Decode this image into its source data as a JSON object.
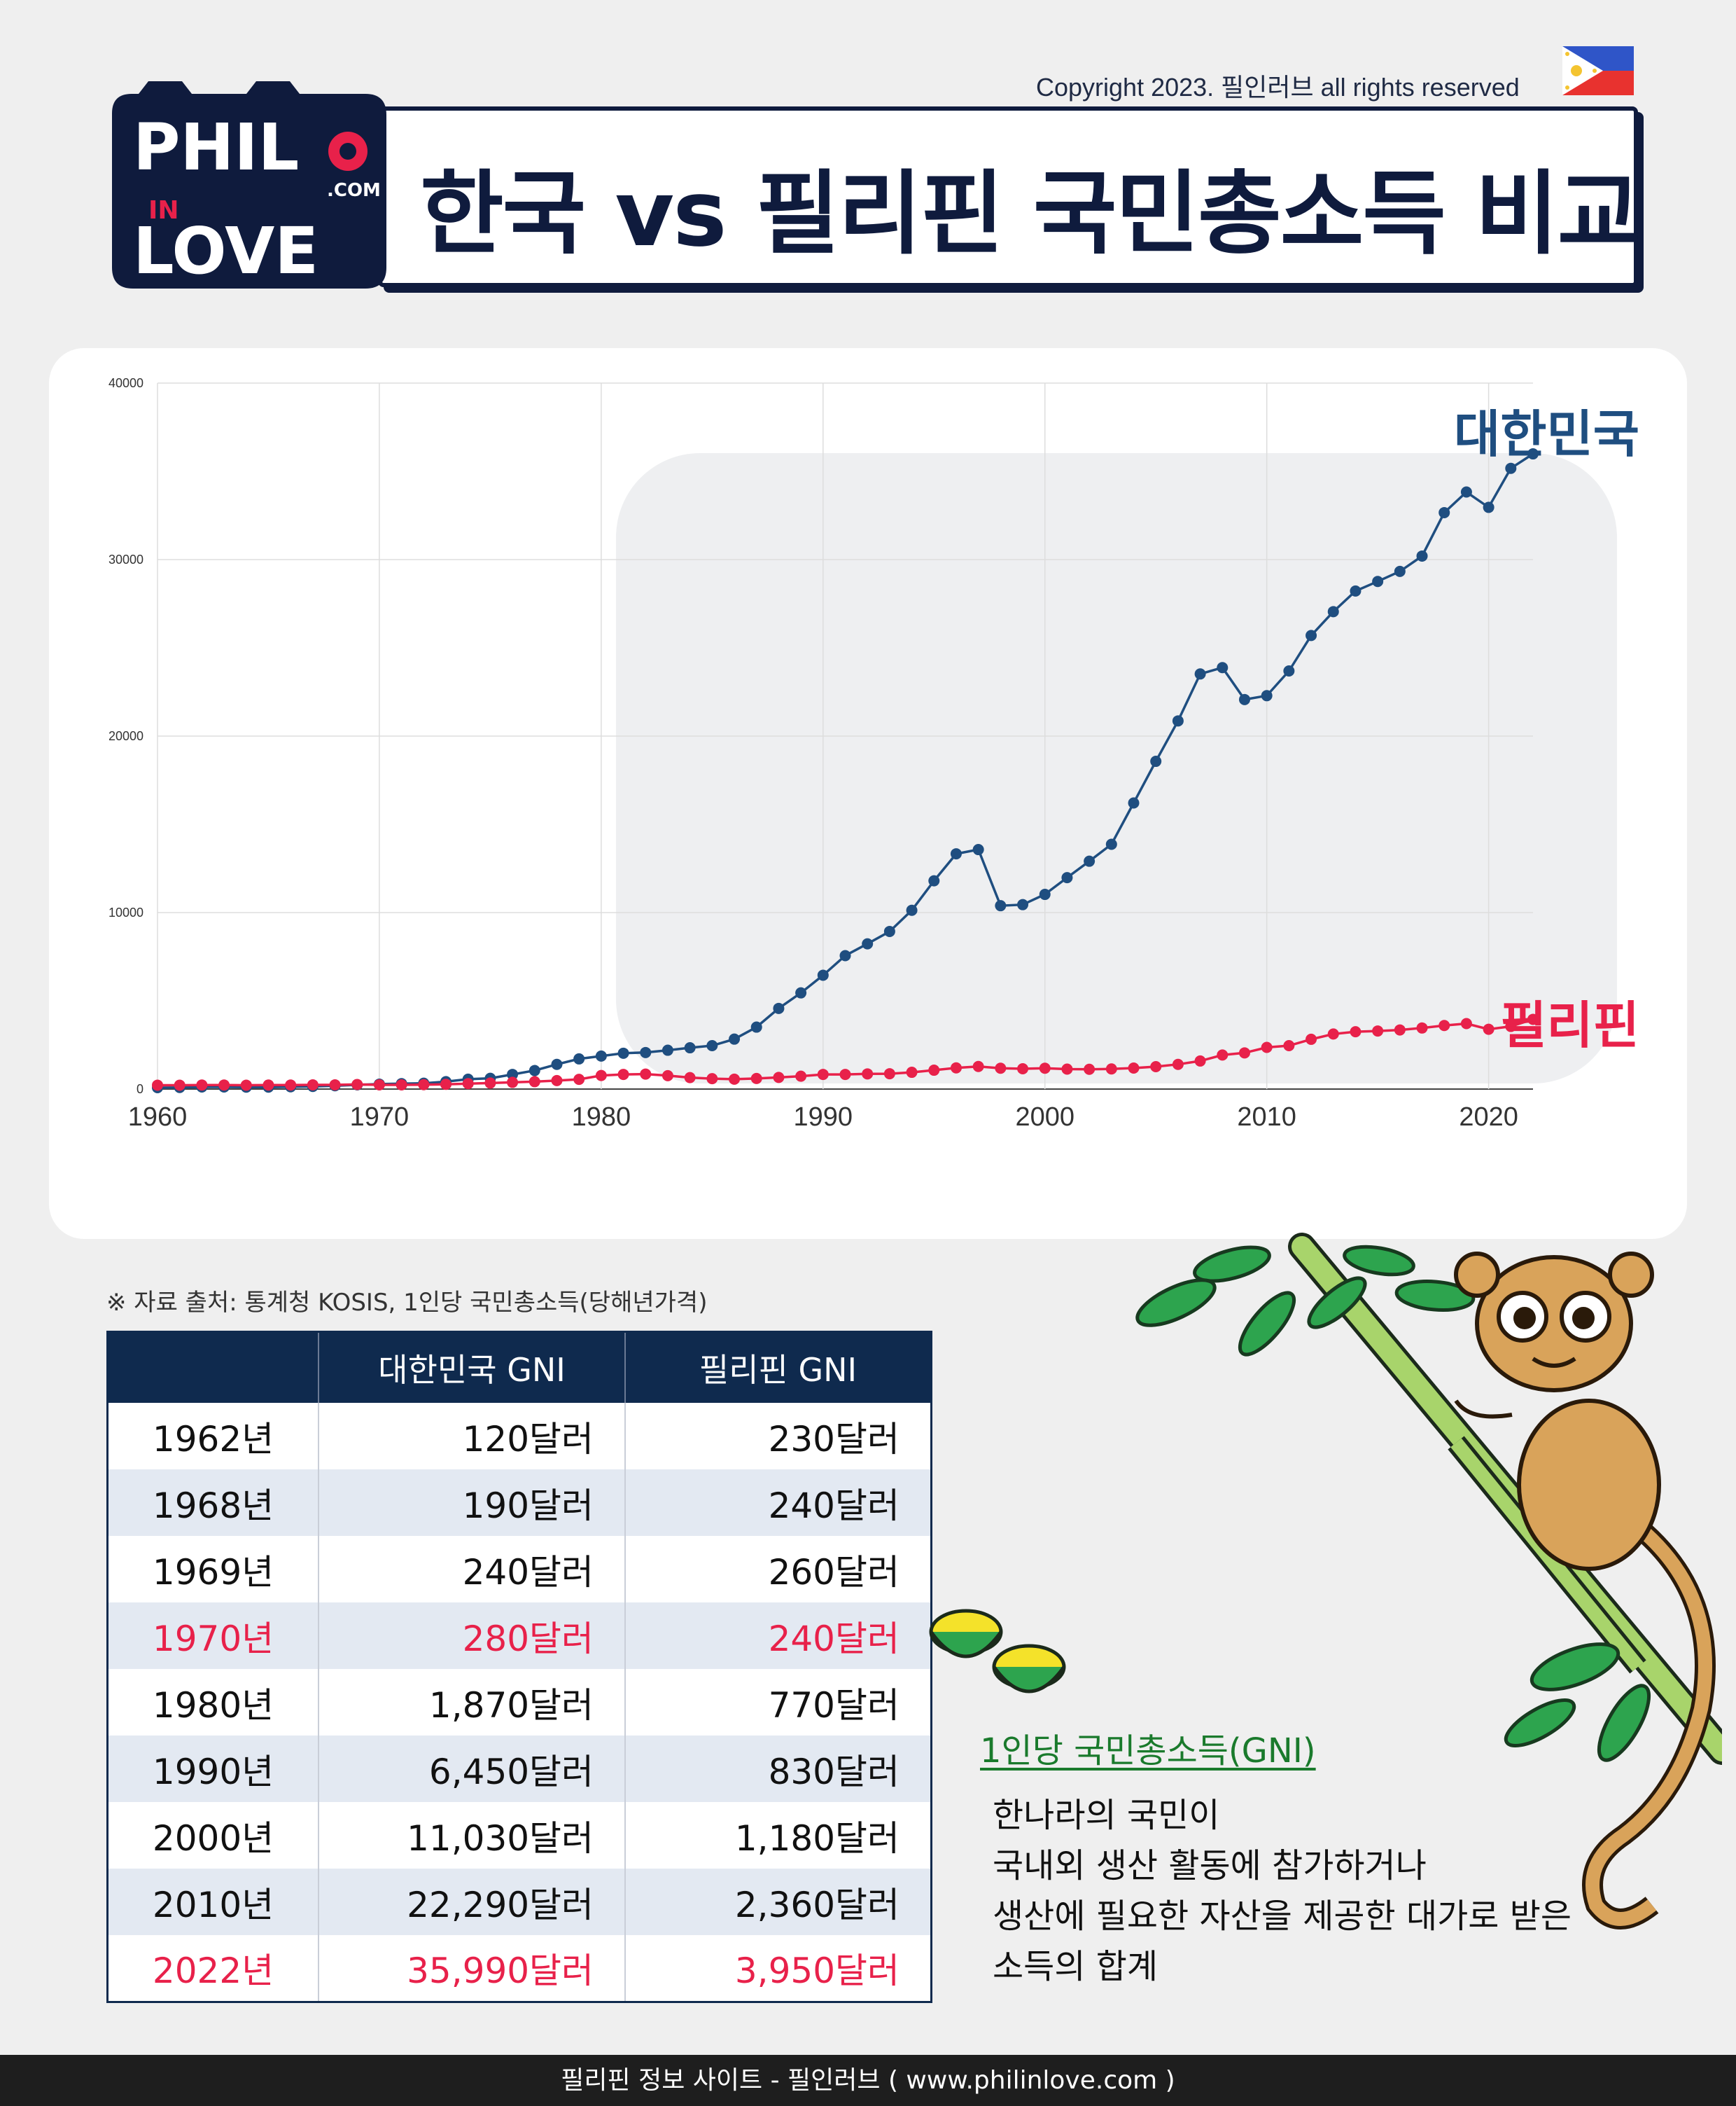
{
  "header": {
    "copyright": "Copyright 2023. 필인러브 all rights reserved",
    "title": "한국 vs 필리핀 국민총소득 비교",
    "logo_text": [
      "PHIL",
      "IN",
      "LOVE",
      ".COM"
    ]
  },
  "chart_data": {
    "type": "line",
    "xlim": [
      1960,
      2022
    ],
    "ylim": [
      0,
      40000
    ],
    "x_ticks": [
      "1960",
      "1970",
      "1980",
      "1990",
      "2000",
      "2010",
      "2020"
    ],
    "y_ticks": [
      "0",
      "10000",
      "20000",
      "30000",
      "40000"
    ],
    "grid": true,
    "series": [
      {
        "name": "대한민국",
        "color": "#1f4e80",
        "x": [
          1960,
          1961,
          1962,
          1963,
          1964,
          1965,
          1966,
          1967,
          1968,
          1969,
          1970,
          1971,
          1972,
          1973,
          1974,
          1975,
          1976,
          1977,
          1978,
          1979,
          1980,
          1981,
          1982,
          1983,
          1984,
          1985,
          1986,
          1987,
          1988,
          1989,
          1990,
          1991,
          1992,
          1993,
          1994,
          1995,
          1996,
          1997,
          1998,
          1999,
          2000,
          2001,
          2002,
          2003,
          2004,
          2005,
          2006,
          2007,
          2008,
          2009,
          2010,
          2011,
          2012,
          2013,
          2014,
          2015,
          2016,
          2017,
          2018,
          2019,
          2020,
          2021,
          2022
        ],
        "values": [
          80,
          90,
          120,
          120,
          110,
          110,
          130,
          150,
          190,
          240,
          280,
          310,
          330,
          420,
          560,
          610,
          830,
          1050,
          1400,
          1710,
          1870,
          2030,
          2070,
          2200,
          2340,
          2460,
          2830,
          3510,
          4570,
          5450,
          6450,
          7560,
          8230,
          8930,
          10130,
          11800,
          13330,
          13570,
          10390,
          10450,
          11030,
          11980,
          12910,
          13870,
          16210,
          18570,
          20860,
          23520,
          23880,
          22070,
          22290,
          23690,
          25700,
          27050,
          28220,
          28760,
          29330,
          30200,
          32660,
          33830,
          32960,
          35170,
          35990
        ]
      },
      {
        "name": "필리핀",
        "color": "#e8214a",
        "x": [
          1960,
          1961,
          1962,
          1963,
          1964,
          1965,
          1966,
          1967,
          1968,
          1969,
          1970,
          1971,
          1972,
          1973,
          1974,
          1975,
          1976,
          1977,
          1978,
          1979,
          1980,
          1981,
          1982,
          1983,
          1984,
          1985,
          1986,
          1987,
          1988,
          1989,
          1990,
          1991,
          1992,
          1993,
          1994,
          1995,
          1996,
          1997,
          1998,
          1999,
          2000,
          2001,
          2002,
          2003,
          2004,
          2005,
          2006,
          2007,
          2008,
          2009,
          2010,
          2011,
          2012,
          2013,
          2014,
          2015,
          2016,
          2017,
          2018,
          2019,
          2020,
          2021,
          2022
        ],
        "values": [
          220,
          220,
          230,
          230,
          220,
          230,
          230,
          240,
          240,
          260,
          240,
          240,
          250,
          270,
          310,
          340,
          380,
          420,
          480,
          550,
          770,
          830,
          850,
          760,
          650,
          590,
          560,
          600,
          660,
          730,
          830,
          830,
          860,
          870,
          950,
          1070,
          1200,
          1280,
          1180,
          1150,
          1180,
          1130,
          1120,
          1140,
          1190,
          1270,
          1400,
          1590,
          1930,
          2050,
          2360,
          2460,
          2820,
          3120,
          3250,
          3290,
          3350,
          3460,
          3600,
          3710,
          3390,
          3550,
          3950
        ]
      }
    ],
    "series_labels": [
      "대한민국",
      "필리핀"
    ]
  },
  "table": {
    "source": "※ 자료 출처: 통계청 KOSIS, 1인당 국민총소득(당해년가격)",
    "headers": [
      "",
      "대한민국 GNI",
      "필리핀 GNI"
    ],
    "rows": [
      [
        "1962년",
        "120달러",
        "230달러"
      ],
      [
        "1968년",
        "190달러",
        "240달러"
      ],
      [
        "1969년",
        "240달러",
        "260달러"
      ],
      [
        "1970년",
        "280달러",
        "240달러"
      ],
      [
        "1980년",
        "1,870달러",
        "770달러"
      ],
      [
        "1990년",
        "6,450달러",
        "830달러"
      ],
      [
        "2000년",
        "11,030달러",
        "1,180달러"
      ],
      [
        "2010년",
        "22,290달러",
        "2,360달러"
      ],
      [
        "2022년",
        "35,990달러",
        "3,950달러"
      ]
    ],
    "highlight_rows": [
      3,
      8
    ],
    "highlight_color": "#e8214a"
  },
  "definition": {
    "title": "1인당 국민총소득(GNI)",
    "lines": [
      "한나라의 국민이",
      "국내외 생산 활동에 참가하거나",
      "생산에 필요한 자산을 제공한 대가로 받은",
      "소득의 합계"
    ]
  },
  "footer": "필리핀 정보 사이트 - 필인러브 ( www.philinlove.com )"
}
